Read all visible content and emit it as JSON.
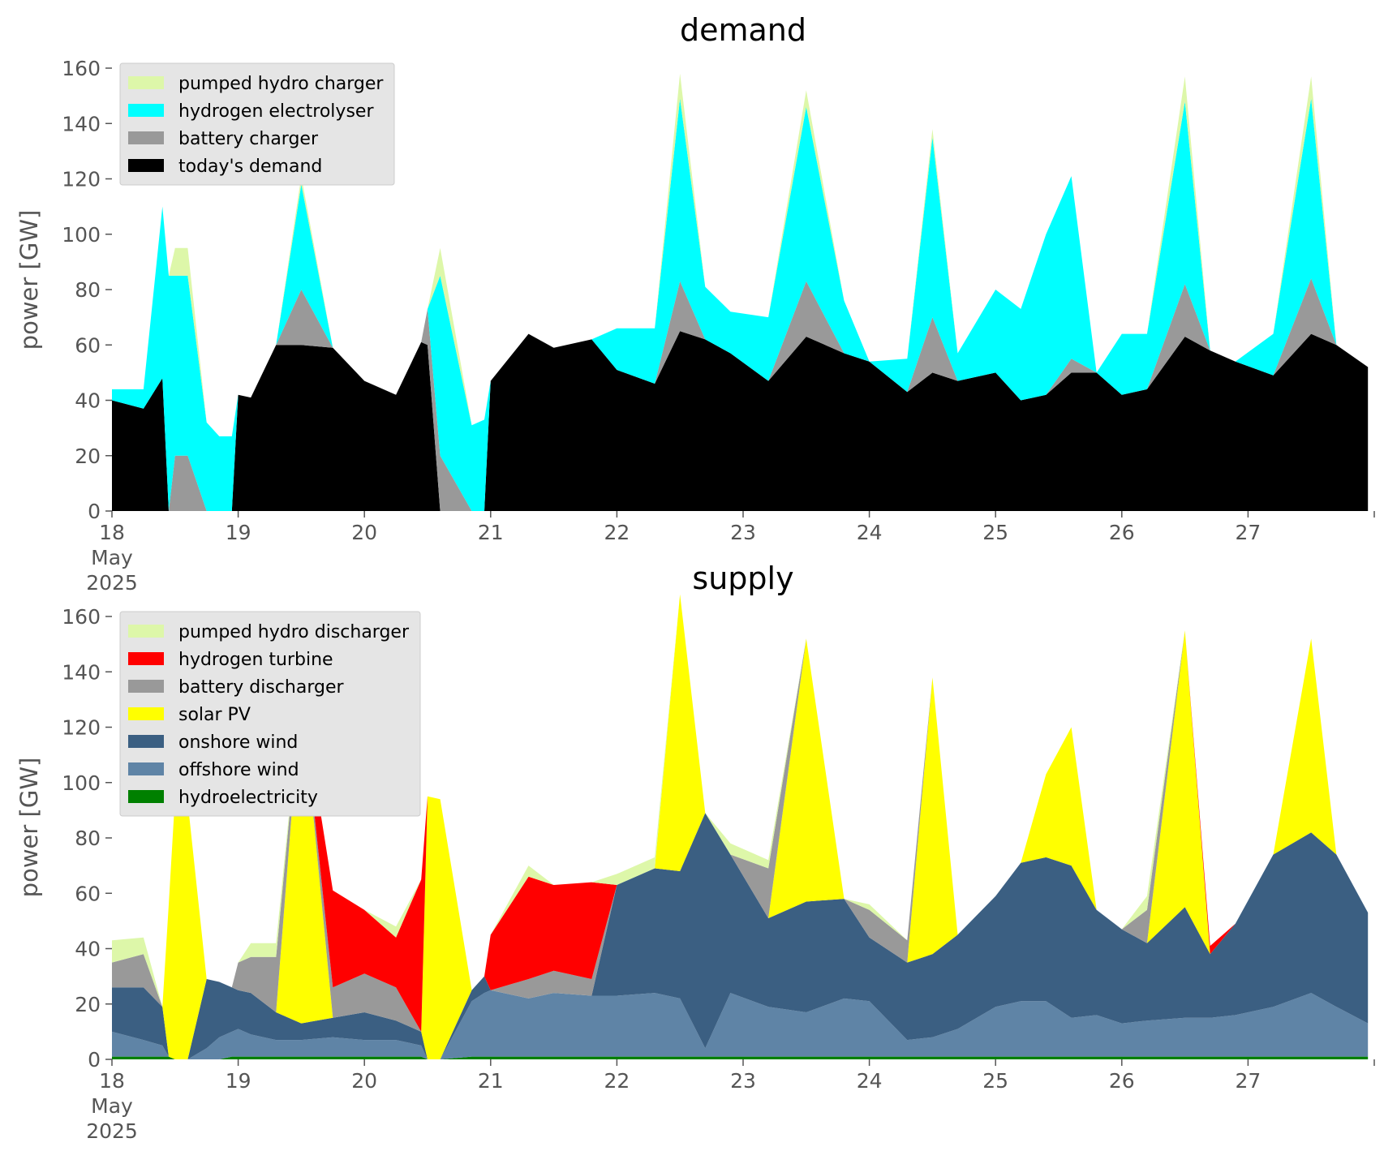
{
  "chart_data": [
    {
      "type": "area",
      "stacked": true,
      "title": "demand",
      "ylabel": "power [GW]",
      "xlabel": "",
      "ylim": [
        0,
        160
      ],
      "yticks": [
        0,
        20,
        40,
        60,
        80,
        100,
        120,
        140,
        160
      ],
      "xlim": [
        18,
        28
      ],
      "xtick_labels": [
        "18\nMay\n2025",
        "19",
        "20",
        "21",
        "22",
        "23",
        "24",
        "25",
        "26",
        "27"
      ],
      "legend_position": "upper left",
      "grid": false,
      "colors": {
        "pumped hydro charger": "#ddf7a9",
        "hydrogen electrolyser": "#00ffff",
        "battery charger": "#999999",
        "today's demand": "#000000"
      },
      "x": [
        18.0,
        18.25,
        18.4,
        18.45,
        18.5,
        18.6,
        18.75,
        18.85,
        18.95,
        19.0,
        19.1,
        19.3,
        19.5,
        19.75,
        20.0,
        20.25,
        20.45,
        20.5,
        20.6,
        20.85,
        20.95,
        21.0,
        21.3,
        21.5,
        21.8,
        22.0,
        22.3,
        22.5,
        22.7,
        22.9,
        23.2,
        23.5,
        23.8,
        24.0,
        24.3,
        24.5,
        24.7,
        25.0,
        25.2,
        25.4,
        25.6,
        25.8,
        26.0,
        26.2,
        26.5,
        26.7,
        26.9,
        27.2,
        27.5,
        27.7,
        27.95
      ],
      "series": [
        {
          "name": "today's demand",
          "values": [
            40,
            37,
            48,
            0,
            0,
            0,
            0,
            0,
            0,
            42,
            41,
            60,
            60,
            59,
            47,
            42,
            61,
            60,
            0,
            0,
            0,
            47,
            64,
            59,
            62,
            51,
            46,
            65,
            62,
            57,
            47,
            63,
            57,
            54,
            43,
            50,
            47,
            50,
            40,
            42,
            50,
            50,
            42,
            44,
            63,
            58,
            54,
            49,
            64,
            60,
            52
          ]
        },
        {
          "name": "battery charger",
          "values": [
            0,
            0,
            0,
            0,
            20,
            20,
            0,
            0,
            0,
            0,
            0,
            0,
            20,
            0,
            0,
            0,
            0,
            13,
            20,
            0,
            0,
            0,
            0,
            0,
            0,
            0,
            0,
            18,
            0,
            0,
            0,
            20,
            0,
            0,
            0,
            20,
            0,
            0,
            0,
            0,
            5,
            0,
            0,
            0,
            19,
            0,
            0,
            0,
            20,
            0,
            0
          ]
        },
        {
          "name": "hydrogen electrolyser",
          "values": [
            4,
            7,
            62,
            85,
            65,
            65,
            32,
            27,
            27,
            0,
            0,
            0,
            38,
            0,
            0,
            0,
            0,
            0,
            65,
            31,
            33,
            0,
            0,
            0,
            0,
            15,
            20,
            66,
            19,
            15,
            23,
            63,
            19,
            0,
            12,
            65,
            10,
            30,
            33,
            58,
            66,
            0,
            22,
            20,
            66,
            0,
            0,
            15,
            65,
            0,
            0
          ]
        },
        {
          "name": "pumped hydro charger",
          "values": [
            0,
            0,
            0,
            0,
            10,
            10,
            0,
            0,
            0,
            0,
            0,
            0,
            3,
            0,
            0,
            0,
            0,
            0,
            10,
            0,
            0,
            0,
            0,
            0,
            0,
            0,
            0,
            9,
            0,
            0,
            0,
            6,
            0,
            0,
            0,
            3,
            0,
            0,
            0,
            0,
            0,
            0,
            0,
            0,
            9,
            0,
            0,
            0,
            8,
            0,
            0
          ]
        }
      ]
    },
    {
      "type": "area",
      "stacked": true,
      "title": "supply",
      "ylabel": "power [GW]",
      "xlabel": "",
      "ylim": [
        0,
        160
      ],
      "yticks": [
        0,
        20,
        40,
        60,
        80,
        100,
        120,
        140,
        160
      ],
      "xlim": [
        18,
        28
      ],
      "xtick_labels": [
        "18\nMay\n2025",
        "19",
        "20",
        "21",
        "22",
        "23",
        "24",
        "25",
        "26",
        "27"
      ],
      "legend_position": "upper left",
      "grid": false,
      "colors": {
        "pumped hydro discharger": "#ddf7a9",
        "hydrogen turbine": "#ff0000",
        "battery discharger": "#999999",
        "solar PV": "#ffff00",
        "onshore wind": "#3b5f82",
        "offshore wind": "#5f84a6",
        "hydroelectricity": "#008000"
      },
      "x": [
        18.0,
        18.25,
        18.4,
        18.45,
        18.5,
        18.6,
        18.75,
        18.85,
        18.95,
        19.0,
        19.1,
        19.3,
        19.5,
        19.75,
        20.0,
        20.25,
        20.45,
        20.5,
        20.6,
        20.85,
        20.95,
        21.0,
        21.3,
        21.5,
        21.8,
        22.0,
        22.3,
        22.5,
        22.7,
        22.9,
        23.2,
        23.5,
        23.8,
        24.0,
        24.3,
        24.5,
        24.7,
        25.0,
        25.2,
        25.4,
        25.6,
        25.8,
        26.0,
        26.2,
        26.5,
        26.7,
        26.9,
        27.2,
        27.5,
        27.7,
        27.95
      ],
      "series": [
        {
          "name": "hydroelectricity",
          "values": [
            1,
            1,
            1,
            1,
            0,
            0,
            0,
            0,
            1,
            1,
            1,
            1,
            1,
            1,
            1,
            1,
            1,
            0,
            0,
            1,
            1,
            1,
            1,
            1,
            1,
            1,
            1,
            1,
            1,
            1,
            1,
            1,
            1,
            1,
            1,
            1,
            1,
            1,
            1,
            1,
            1,
            1,
            1,
            1,
            1,
            1,
            1,
            1,
            1,
            1,
            1
          ]
        },
        {
          "name": "offshore wind",
          "values": [
            9,
            6,
            4,
            0,
            0,
            0,
            4,
            8,
            9,
            10,
            8,
            6,
            6,
            7,
            6,
            6,
            4,
            0,
            0,
            20,
            23,
            24,
            21,
            23,
            22,
            22,
            23,
            21,
            3,
            23,
            18,
            16,
            21,
            20,
            6,
            7,
            10,
            18,
            20,
            20,
            14,
            15,
            12,
            13,
            14,
            14,
            15,
            18,
            23,
            18,
            12
          ]
        },
        {
          "name": "onshore wind",
          "values": [
            16,
            19,
            14,
            0,
            0,
            0,
            25,
            20,
            16,
            14,
            15,
            10,
            6,
            7,
            10,
            7,
            5,
            0,
            0,
            4,
            6,
            0,
            0,
            0,
            0,
            40,
            45,
            46,
            85,
            50,
            32,
            40,
            36,
            23,
            28,
            30,
            34,
            40,
            50,
            52,
            55,
            38,
            34,
            28,
            40,
            23,
            33,
            55,
            58,
            55,
            40
          ]
        },
        {
          "name": "solar PV",
          "values": [
            0,
            0,
            0,
            55,
            95,
            93,
            0,
            0,
            0,
            0,
            0,
            0,
            120,
            0,
            0,
            0,
            0,
            95,
            94,
            0,
            0,
            0,
            0,
            0,
            0,
            0,
            0,
            100,
            0,
            0,
            0,
            95,
            0,
            0,
            0,
            100,
            0,
            0,
            0,
            30,
            50,
            0,
            0,
            0,
            100,
            0,
            0,
            0,
            70,
            0,
            0
          ]
        },
        {
          "name": "battery discharger",
          "values": [
            9,
            12,
            0,
            0,
            0,
            0,
            0,
            0,
            0,
            10,
            13,
            20,
            0,
            11,
            14,
            12,
            0,
            0,
            0,
            0,
            0,
            0,
            7,
            8,
            6,
            0,
            0,
            0,
            0,
            0,
            18,
            0,
            0,
            10,
            8,
            0,
            0,
            0,
            0,
            0,
            0,
            0,
            0,
            12,
            0,
            0,
            0,
            0,
            0,
            0,
            0
          ]
        },
        {
          "name": "hydrogen turbine",
          "values": [
            0,
            0,
            0,
            0,
            0,
            0,
            0,
            0,
            0,
            0,
            0,
            0,
            0,
            35,
            23,
            18,
            55,
            0,
            0,
            0,
            0,
            20,
            37,
            31,
            35,
            0,
            0,
            0,
            0,
            0,
            0,
            0,
            0,
            0,
            0,
            0,
            0,
            0,
            0,
            0,
            0,
            0,
            0,
            0,
            0,
            3,
            0,
            0,
            0,
            0,
            0
          ]
        },
        {
          "name": "pumped hydro discharger",
          "values": [
            8,
            6,
            0,
            0,
            0,
            0,
            0,
            0,
            0,
            0,
            5,
            5,
            0,
            0,
            0,
            4,
            0,
            0,
            0,
            0,
            0,
            0,
            4,
            0,
            0,
            4,
            4,
            0,
            0,
            4,
            3,
            0,
            0,
            2,
            0,
            0,
            0,
            0,
            0,
            0,
            0,
            0,
            0,
            5,
            0,
            0,
            0,
            0,
            0,
            0,
            0
          ]
        }
      ]
    }
  ]
}
